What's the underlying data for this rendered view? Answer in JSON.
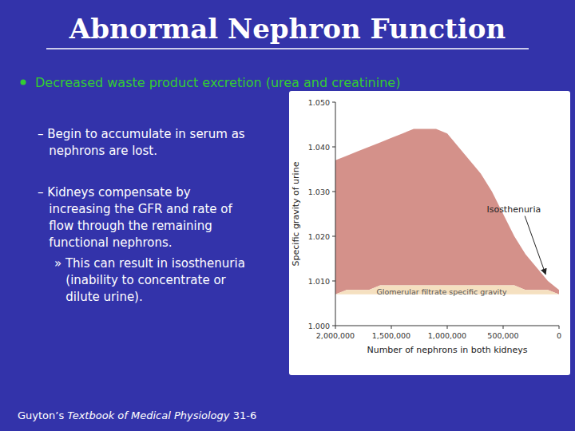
{
  "chart_data": {
    "type": "area",
    "title": "Abnormal Nephron Function",
    "xlabel": "Number of nephrons in both kidneys",
    "ylabel": "Specific gravity of urine",
    "x": [
      0,
      100000,
      200000,
      300000,
      400000,
      500000,
      600000,
      700000,
      800000,
      900000,
      1000000,
      1100000,
      1200000,
      1300000,
      1400000,
      1500000,
      1600000,
      1700000,
      1800000,
      1900000,
      2000000
    ],
    "series": [
      {
        "color": "#d4918a",
        "values": [
          1.008,
          1.01,
          1.013,
          1.016,
          1.02,
          1.025,
          1.03,
          1.034,
          1.037,
          1.04,
          1.043,
          1.044,
          1.044,
          1.044,
          1.043,
          1.042,
          1.041,
          1.04,
          1.039,
          1.038,
          1.037
        ],
        "lower": [
          1.007,
          1.008,
          1.008,
          1.008,
          1.009,
          1.009,
          1.009,
          1.009,
          1.009,
          1.009,
          1.009,
          1.009,
          1.009,
          1.009,
          1.009,
          1.009,
          1.009,
          1.008,
          1.008,
          1.008,
          1.007
        ]
      },
      {
        "color": "#f5e0c0",
        "values": [
          1.007,
          1.008,
          1.008,
          1.008,
          1.009,
          1.009,
          1.009,
          1.009,
          1.009,
          1.009,
          1.009,
          1.009,
          1.009,
          1.009,
          1.009,
          1.009,
          1.009,
          1.008,
          1.008,
          1.008,
          1.007
        ],
        "lower": [
          1.007,
          1.007,
          1.007,
          1.007,
          1.007,
          1.007,
          1.007,
          1.007,
          1.007,
          1.007,
          1.007,
          1.007,
          1.007,
          1.007,
          1.007,
          1.007,
          1.007,
          1.007,
          1.007,
          1.007,
          1.007
        ]
      }
    ],
    "xlim": [
      2000000,
      0
    ],
    "xticks": [
      {
        "value": 2000000,
        "label": "2,000,000"
      },
      {
        "value": 1500000,
        "label": "1,500,000"
      },
      {
        "value": 1000000,
        "label": "1,000,000"
      },
      {
        "value": 500000,
        "label": "500,000"
      },
      0
    ],
    "ylim": [
      1.0,
      1.05
    ],
    "yticks": [
      {
        "value": 1.0,
        "label": "1.000"
      },
      {
        "value": 1.01,
        "label": "1.010"
      },
      {
        "value": 1.02,
        "label": "1.020"
      },
      {
        "value": 1.03,
        "label": "1.030"
      },
      {
        "value": 1.04,
        "label": "1.040"
      },
      {
        "value": 1.05,
        "label": "1.050"
      }
    ],
    "grid": false,
    "annotations": [
      {
        "text": "Decreased waste product excretion (urea and creatinine)",
        "color": "#33cc33"
      },
      {
        "text": "– Begin to accumulate in serum as\n   nephrons are lost."
      },
      {
        "text": "– Kidneys compensate by\n   increasing the GFR and rate of\n   flow through the remaining\n   functional nephrons."
      },
      {
        "text": "» This can result in isosthenuria\n   (inability to concentrate or\n   dilute urine)."
      },
      {
        "text": "Guyton’s "
      },
      {
        "text": "Textbook of Medical Physiology"
      },
      {
        "text": " 31-6"
      },
      {
        "text": "Isosthenuria",
        "x": 120000,
        "y": 1.0115
      },
      {
        "text": "Glomerular filtrate specific gravity",
        "x": 1050000,
        "y": 1.0075
      }
    ]
  }
}
